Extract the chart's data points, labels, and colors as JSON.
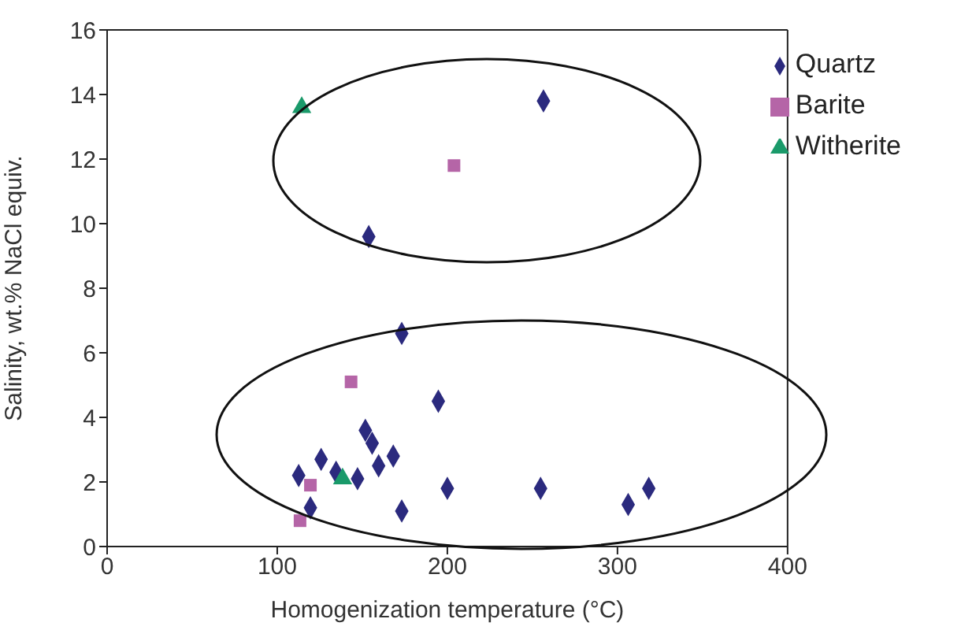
{
  "chart_data": {
    "type": "scatter",
    "xlabel": "Homogenization temperature (°C)",
    "ylabel": "Salinity, wt.% NaCl equiv.",
    "xlim": [
      0,
      400
    ],
    "xticks": [
      0,
      100,
      200,
      300,
      400
    ],
    "ylim": [
      0,
      16
    ],
    "yticks": [
      0,
      2,
      4,
      6,
      8,
      10,
      12,
      14,
      16
    ],
    "grid": false,
    "legend": "top right",
    "series": [
      {
        "name": "Quartz",
        "color": "#2b2a7e",
        "marker": "diamond",
        "x": [
          112.6,
          119.5,
          125.8,
          134.6,
          151.8,
          155.8,
          147.2,
          159.6,
          168.2,
          173.2,
          173.2,
          194.7,
          200,
          254.8,
          306.3,
          318.4,
          256.5,
          153.8
        ],
        "values": [
          2.2,
          1.2,
          2.7,
          2.3,
          3.6,
          3.2,
          2.1,
          2.5,
          2.8,
          6.6,
          1.1,
          4.5,
          1.8,
          1.8,
          1.3,
          1.8,
          13.8,
          9.6
        ]
      },
      {
        "name": "Barite",
        "color": "#b565a7",
        "marker": "square",
        "x": [
          203.9,
          143.4,
          119.5,
          113.4
        ],
        "values": [
          11.8,
          5.1,
          1.9,
          0.8
        ]
      },
      {
        "name": "Witherite",
        "color": "#1a9a6a",
        "marker": "triangle",
        "x": [
          114.4,
          138.4
        ],
        "values": [
          13.6,
          2.1
        ]
      }
    ]
  }
}
